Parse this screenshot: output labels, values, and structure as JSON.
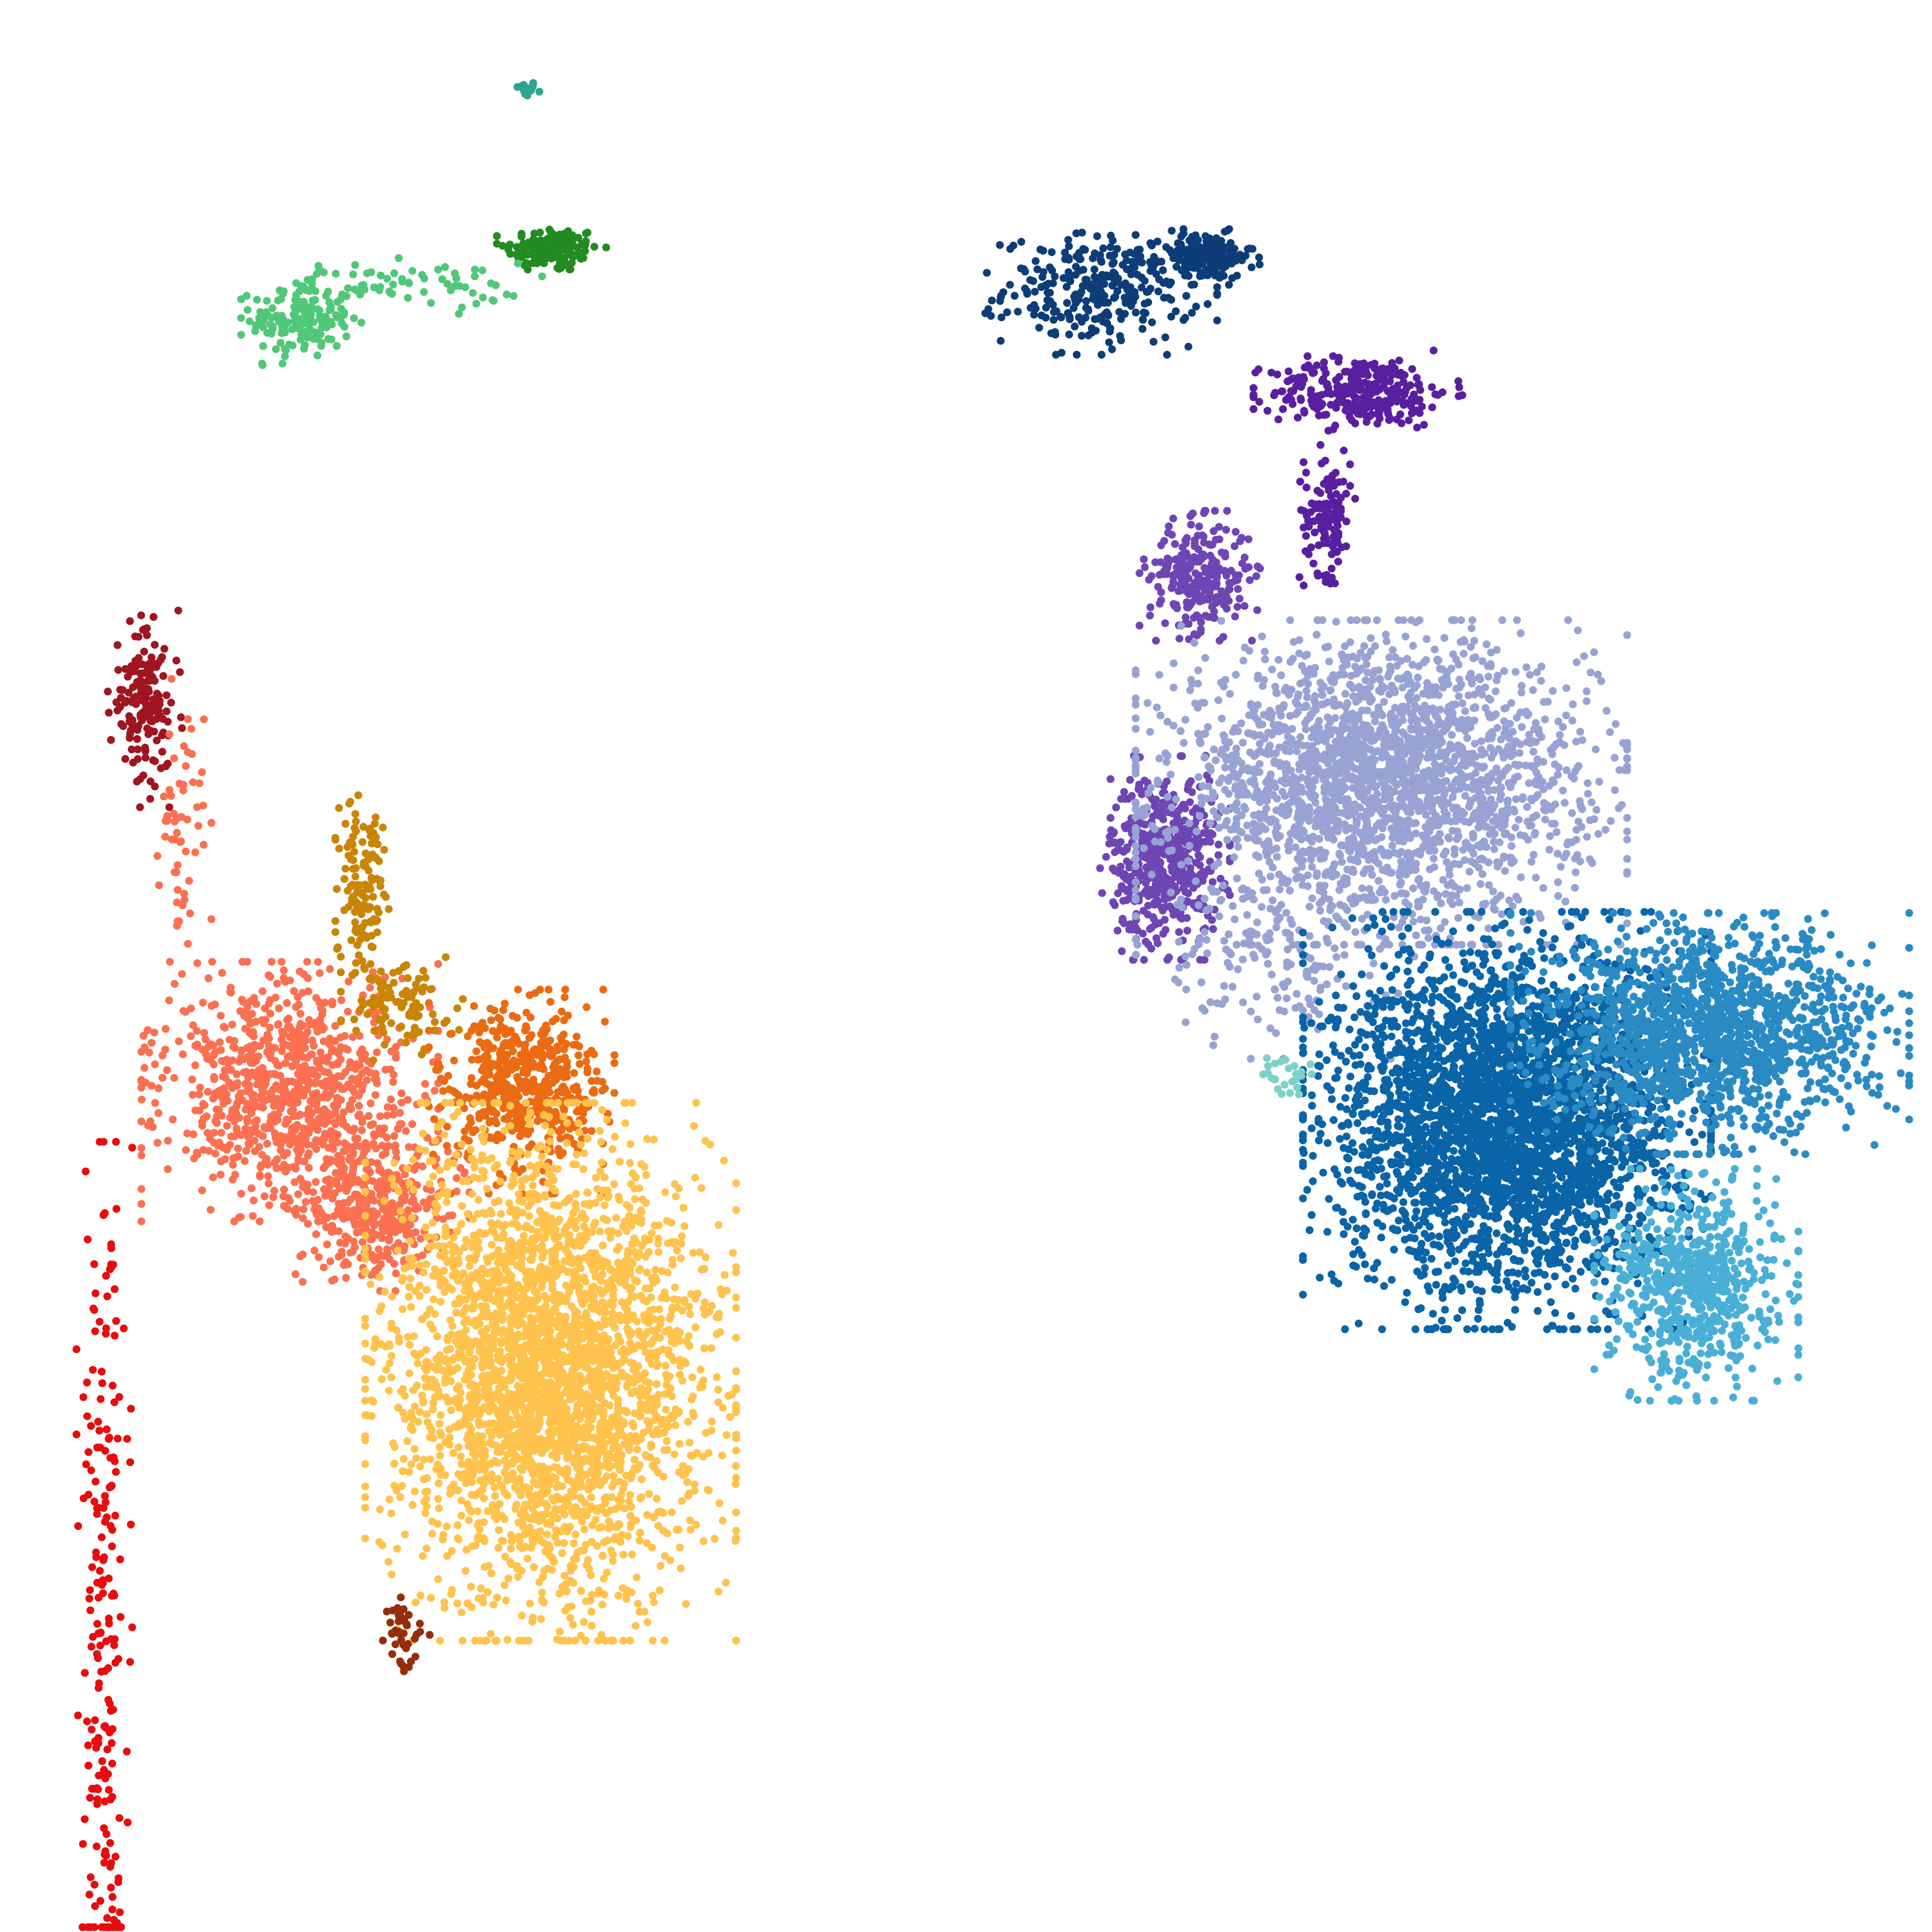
{
  "chart_data": {
    "type": "scatter",
    "title": "",
    "xlabel": "",
    "ylabel": "",
    "axes_visible": false,
    "grid": false,
    "legend": "none",
    "xlim": [
      0,
      100
    ],
    "ylim": [
      0,
      100
    ],
    "clusters": [
      {
        "color": "#2ca58d",
        "center": [
          27.2,
          95.4
        ],
        "spread": [
          0.3,
          0.2
        ],
        "count": 20
      },
      {
        "color": "#228b22",
        "center": [
          28.6,
          87.1
        ],
        "spread": [
          1.2,
          0.6
        ],
        "count": 140
      },
      {
        "color": "#50c878",
        "center": [
          15.6,
          83.5
        ],
        "spread": [
          1.3,
          1.0
        ],
        "count": 160
      },
      {
        "color": "#50c878",
        "center": [
          21.0,
          85.2
        ],
        "spread": [
          3.0,
          0.6
        ],
        "count": 70
      },
      {
        "color": "#0c3d78",
        "center": [
          57.0,
          85.0
        ],
        "spread": [
          2.5,
          1.4
        ],
        "count": 300
      },
      {
        "color": "#0c3d78",
        "center": [
          62.5,
          86.7
        ],
        "spread": [
          1.2,
          0.6
        ],
        "count": 160
      },
      {
        "color": "#591fa1",
        "center": [
          70.4,
          79.7
        ],
        "spread": [
          2.3,
          0.9
        ],
        "count": 300
      },
      {
        "color": "#591fa1",
        "center": [
          68.7,
          73.5
        ],
        "spread": [
          0.6,
          1.6
        ],
        "count": 120
      },
      {
        "color": "#6e46b4",
        "center": [
          62.1,
          70.2
        ],
        "spread": [
          1.3,
          1.4
        ],
        "count": 260
      },
      {
        "color": "#6e46b4",
        "center": [
          60.3,
          55.6
        ],
        "spread": [
          1.4,
          2.2
        ],
        "count": 520
      },
      {
        "color": "#98a3d4",
        "center": [
          71.5,
          59.5
        ],
        "spread": [
          5.3,
          3.5
        ],
        "count": 2400
      },
      {
        "color": "#98a3d4",
        "center": [
          66.0,
          50.0
        ],
        "spread": [
          3.0,
          2.0
        ],
        "count": 150
      },
      {
        "color": "#0a64a8",
        "center": [
          78.0,
          42.0
        ],
        "spread": [
          4.4,
          4.5
        ],
        "count": 3300
      },
      {
        "color": "#2a8bc4",
        "center": [
          88.5,
          46.5
        ],
        "spread": [
          4.3,
          2.6
        ],
        "count": 1500
      },
      {
        "color": "#4aafd7",
        "center": [
          87.8,
          33.5
        ],
        "spread": [
          2.2,
          2.5
        ],
        "count": 650
      },
      {
        "color": "#7fd1c7",
        "center": [
          66.6,
          44.5
        ],
        "spread": [
          0.6,
          0.5
        ],
        "count": 25
      },
      {
        "color": "#a01520",
        "center": [
          7.5,
          63.5
        ],
        "spread": [
          0.8,
          2.2
        ],
        "count": 160
      },
      {
        "color": "#fa7050",
        "center": [
          9.5,
          56.5
        ],
        "spread": [
          0.6,
          3.5
        ],
        "count": 60
      },
      {
        "color": "#fa7050",
        "center": [
          15.0,
          43.5
        ],
        "spread": [
          3.2,
          2.8
        ],
        "count": 900
      },
      {
        "color": "#fa7050",
        "center": [
          19.5,
          37.5
        ],
        "spread": [
          2.0,
          1.8
        ],
        "count": 380
      },
      {
        "color": "#c98505",
        "center": [
          18.8,
          54.0
        ],
        "spread": [
          0.6,
          2.5
        ],
        "count": 140
      },
      {
        "color": "#c98505",
        "center": [
          21.0,
          48.0
        ],
        "spread": [
          1.4,
          1.2
        ],
        "count": 90
      },
      {
        "color": "#ea6b12",
        "center": [
          27.0,
          43.5
        ],
        "spread": [
          2.0,
          2.2
        ],
        "count": 550
      },
      {
        "color": "#ffc34d",
        "center": [
          28.5,
          29.0
        ],
        "spread": [
          4.0,
          5.8
        ],
        "count": 3100
      },
      {
        "color": "#962d0a",
        "center": [
          20.8,
          15.5
        ],
        "spread": [
          0.6,
          1.1
        ],
        "count": 40
      },
      {
        "color": "#e80c0c",
        "center": [
          5.4,
          14.5
        ],
        "spread": [
          0.6,
          11.0
        ],
        "count": 220
      }
    ]
  }
}
